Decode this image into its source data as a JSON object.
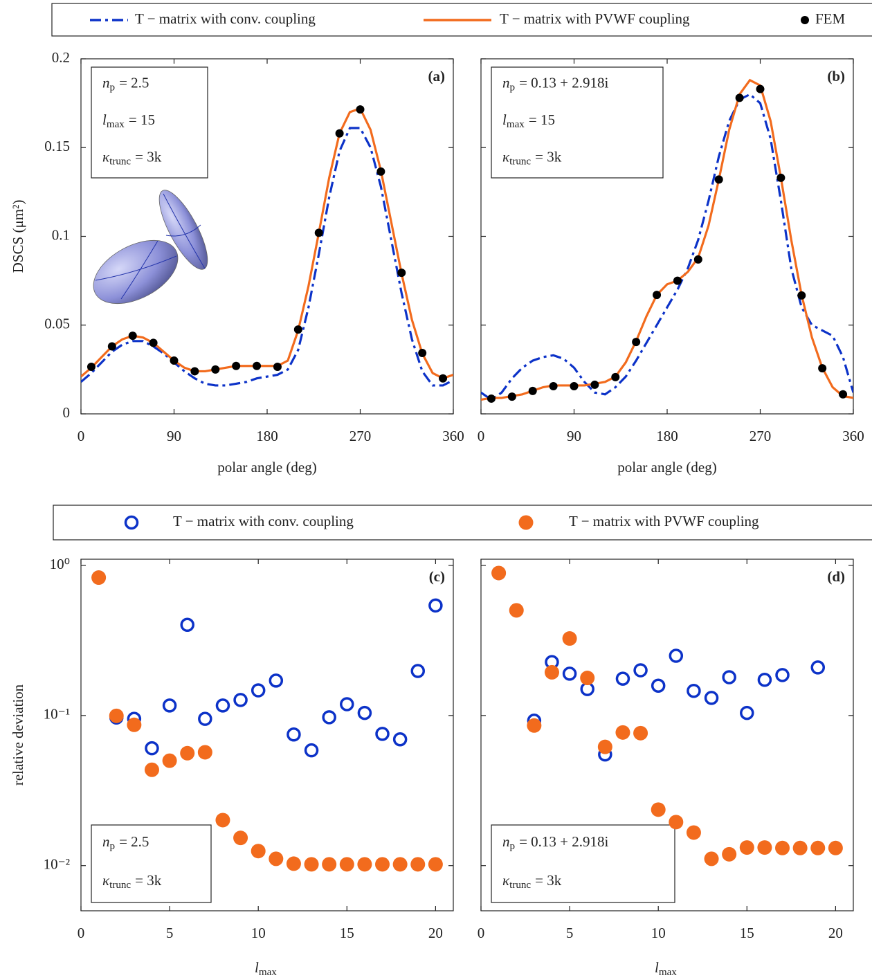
{
  "chart_data": [
    {
      "type": "line",
      "panel_label": "(a)",
      "xlabel": "polar angle (deg)",
      "ylabel": "DSCS (μm²)",
      "xlim": [
        0,
        360
      ],
      "xticks": [
        0,
        90,
        180,
        270,
        360
      ],
      "ylim": [
        0,
        0.2
      ],
      "yticks": [
        0,
        0.05,
        0.1,
        0.15,
        0.2
      ],
      "show_ytick_labels": true,
      "annotations": [
        {
          "symbol": "n",
          "sub": "p",
          "rhs": "= 2.5"
        },
        {
          "symbol": "l",
          "sub": "max",
          "rhs": "= 15"
        },
        {
          "symbol": "κ",
          "sub": "trunc",
          "rhs": "= 3k"
        }
      ],
      "series": [
        {
          "name": "T − matrix with conv. coupling",
          "style": "dashdot",
          "color": "#0c32c8",
          "x": [
            0,
            10,
            20,
            30,
            40,
            50,
            60,
            70,
            80,
            90,
            100,
            110,
            120,
            130,
            140,
            150,
            160,
            170,
            180,
            190,
            200,
            210,
            220,
            230,
            240,
            250,
            260,
            270,
            280,
            290,
            300,
            310,
            320,
            330,
            340,
            350,
            360
          ],
          "values": [
            0.018,
            0.023,
            0.029,
            0.035,
            0.039,
            0.041,
            0.041,
            0.038,
            0.034,
            0.029,
            0.024,
            0.02,
            0.017,
            0.016,
            0.016,
            0.017,
            0.018,
            0.02,
            0.021,
            0.022,
            0.025,
            0.036,
            0.06,
            0.09,
            0.122,
            0.148,
            0.161,
            0.161,
            0.15,
            0.128,
            0.098,
            0.068,
            0.042,
            0.024,
            0.016,
            0.016,
            0.019
          ]
        },
        {
          "name": "T − matrix with PVWF coupling",
          "style": "solid",
          "color": "#f26b1d",
          "x": [
            0,
            10,
            20,
            30,
            40,
            50,
            60,
            70,
            80,
            90,
            100,
            110,
            120,
            130,
            140,
            150,
            160,
            170,
            180,
            190,
            200,
            210,
            220,
            230,
            240,
            250,
            260,
            270,
            280,
            290,
            300,
            310,
            320,
            330,
            340,
            350,
            360
          ],
          "values": [
            0.021,
            0.026,
            0.032,
            0.038,
            0.042,
            0.044,
            0.043,
            0.04,
            0.035,
            0.03,
            0.026,
            0.024,
            0.024,
            0.025,
            0.026,
            0.027,
            0.027,
            0.027,
            0.027,
            0.027,
            0.03,
            0.047,
            0.072,
            0.102,
            0.133,
            0.158,
            0.17,
            0.172,
            0.16,
            0.137,
            0.108,
            0.079,
            0.053,
            0.034,
            0.023,
            0.02,
            0.022
          ]
        },
        {
          "name": "FEM",
          "style": "marker",
          "color": "#000000",
          "x": [
            10,
            30,
            50,
            70,
            90,
            110,
            130,
            150,
            170,
            190,
            210,
            230,
            250,
            270,
            290,
            310,
            330,
            350
          ],
          "values": [
            0.0265,
            0.038,
            0.044,
            0.04,
            0.03,
            0.024,
            0.025,
            0.027,
            0.027,
            0.0265,
            0.0475,
            0.102,
            0.158,
            0.1715,
            0.1365,
            0.0795,
            0.0343,
            0.02
          ]
        }
      ]
    },
    {
      "type": "line",
      "panel_label": "(b)",
      "xlabel": "polar angle (deg)",
      "xlim": [
        0,
        360
      ],
      "xticks": [
        0,
        90,
        180,
        270,
        360
      ],
      "ylim": [
        0,
        0.2
      ],
      "yticks": [
        0,
        0.05,
        0.1,
        0.15,
        0.2
      ],
      "show_ytick_labels": false,
      "annotations": [
        {
          "symbol": "n",
          "sub": "p",
          "rhs": "= 0.13 + 2.918i"
        },
        {
          "symbol": "l",
          "sub": "max",
          "rhs": "= 15"
        },
        {
          "symbol": "κ",
          "sub": "trunc",
          "rhs": "= 3k"
        }
      ],
      "series": [
        {
          "style": "dashdot",
          "color": "#0c32c8",
          "x": [
            0,
            10,
            20,
            30,
            40,
            50,
            60,
            70,
            80,
            90,
            100,
            110,
            120,
            130,
            140,
            150,
            160,
            170,
            180,
            190,
            200,
            210,
            220,
            230,
            240,
            250,
            260,
            270,
            280,
            290,
            300,
            310,
            320,
            330,
            340,
            350,
            360
          ],
          "values": [
            0.012,
            0.008,
            0.012,
            0.02,
            0.026,
            0.03,
            0.032,
            0.033,
            0.031,
            0.026,
            0.018,
            0.012,
            0.011,
            0.015,
            0.021,
            0.03,
            0.04,
            0.05,
            0.06,
            0.07,
            0.082,
            0.098,
            0.12,
            0.145,
            0.165,
            0.177,
            0.18,
            0.175,
            0.155,
            0.12,
            0.082,
            0.06,
            0.05,
            0.047,
            0.044,
            0.032,
            0.012
          ]
        },
        {
          "style": "solid",
          "color": "#f26b1d",
          "x": [
            0,
            10,
            20,
            30,
            40,
            50,
            60,
            70,
            80,
            90,
            100,
            110,
            120,
            130,
            140,
            150,
            160,
            170,
            180,
            190,
            200,
            210,
            220,
            230,
            240,
            250,
            260,
            270,
            280,
            290,
            300,
            310,
            320,
            330,
            340,
            350,
            360
          ],
          "values": [
            0.008,
            0.009,
            0.009,
            0.01,
            0.011,
            0.013,
            0.015,
            0.016,
            0.016,
            0.016,
            0.016,
            0.017,
            0.018,
            0.021,
            0.029,
            0.041,
            0.055,
            0.067,
            0.073,
            0.075,
            0.08,
            0.088,
            0.106,
            0.132,
            0.16,
            0.18,
            0.188,
            0.185,
            0.165,
            0.133,
            0.098,
            0.067,
            0.043,
            0.026,
            0.015,
            0.01,
            0.009
          ]
        },
        {
          "style": "marker",
          "color": "#000000",
          "x": [
            10,
            30,
            50,
            70,
            90,
            110,
            130,
            150,
            170,
            190,
            210,
            230,
            250,
            270,
            290,
            310,
            330,
            350
          ],
          "values": [
            0.0086,
            0.0097,
            0.0129,
            0.0156,
            0.0156,
            0.0164,
            0.0207,
            0.0405,
            0.067,
            0.075,
            0.087,
            0.132,
            0.178,
            0.183,
            0.133,
            0.0667,
            0.0257,
            0.011
          ]
        }
      ]
    },
    {
      "type": "scatter",
      "panel_label": "(c)",
      "xlabel": {
        "symbol": "l",
        "sub": "max"
      },
      "ylabel": "relative deviation",
      "log_y": true,
      "xlim": [
        0,
        21
      ],
      "xticks": [
        0,
        5,
        10,
        15,
        20
      ],
      "ylim": [
        0.005,
        1.1
      ],
      "yticks": [
        {
          "value": 1,
          "label": "10⁰"
        },
        {
          "value": 0.1,
          "label": "10⁻¹"
        },
        {
          "value": 0.01,
          "label": "10⁻²"
        }
      ],
      "show_ytick_labels": true,
      "annotations": [
        {
          "symbol": "n",
          "sub": "p",
          "rhs": "= 2.5"
        },
        {
          "symbol": "κ",
          "sub": "trunc",
          "rhs": "= 3k"
        }
      ],
      "x": [
        1,
        2,
        3,
        4,
        5,
        6,
        7,
        8,
        9,
        10,
        11,
        12,
        13,
        14,
        15,
        16,
        17,
        18,
        19,
        20
      ],
      "series": [
        {
          "name": "T − matrix with conv. coupling",
          "style": "open-circle",
          "color": "#0c32c8",
          "values": [
            0.83,
            0.097,
            0.095,
            0.0605,
            0.1166,
            0.402,
            0.095,
            0.1166,
            0.127,
            0.147,
            0.171,
            0.0748,
            0.0586,
            0.0974,
            0.119,
            0.104,
            0.0755,
            0.0694,
            0.198,
            0.541
          ]
        },
        {
          "name": "T − matrix with PVWF coupling",
          "style": "filled-circle",
          "color": "#f26b1d",
          "values": [
            0.83,
            0.0995,
            0.0867,
            0.0435,
            0.05,
            0.0561,
            0.0569,
            0.0201,
            0.0153,
            0.0125,
            0.0111,
            0.0103,
            0.0102,
            0.0102,
            0.0102,
            0.0102,
            0.0102,
            0.0102,
            0.0102,
            0.0102
          ]
        }
      ]
    },
    {
      "type": "scatter",
      "panel_label": "(d)",
      "xlabel": {
        "symbol": "l",
        "sub": "max"
      },
      "log_y": true,
      "xlim": [
        0,
        21
      ],
      "xticks": [
        0,
        5,
        10,
        15,
        20
      ],
      "ylim": [
        0.005,
        1.1
      ],
      "yticks": [
        1,
        0.1,
        0.01
      ],
      "show_ytick_labels": false,
      "annotations": [
        {
          "symbol": "n",
          "sub": "p",
          "rhs": "= 0.13 + 2.918i"
        },
        {
          "symbol": "κ",
          "sub": "trunc",
          "rhs": "= 3k"
        }
      ],
      "x": [
        1,
        2,
        3,
        4,
        5,
        6,
        7,
        8,
        9,
        10,
        11,
        12,
        13,
        14,
        15,
        16,
        17,
        18,
        19,
        20
      ],
      "series": [
        {
          "style": "open-circle",
          "color": "#0c32c8",
          "values": [
            0.89,
            0.502,
            0.0924,
            0.227,
            0.19,
            0.15,
            0.055,
            0.176,
            0.2,
            0.158,
            0.25,
            0.146,
            0.131,
            0.18,
            0.104,
            0.173,
            0.186,
            null,
            0.209,
            null
          ]
        },
        {
          "style": "filled-circle",
          "color": "#f26b1d",
          "values": [
            0.89,
            0.502,
            0.0858,
            0.194,
            0.326,
            0.178,
            0.0618,
            0.0771,
            0.0763,
            0.0236,
            0.0195,
            0.0166,
            0.0111,
            0.0119,
            0.0132,
            0.0132,
            0.0131,
            0.0131,
            0.0131,
            0.0131
          ]
        }
      ]
    }
  ]
}
